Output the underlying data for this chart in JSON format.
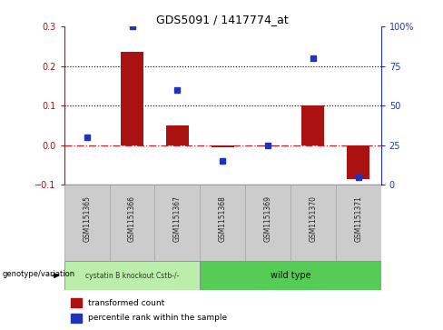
{
  "title": "GDS5091 / 1417774_at",
  "categories": [
    "GSM1151365",
    "GSM1151366",
    "GSM1151367",
    "GSM1151368",
    "GSM1151369",
    "GSM1151370",
    "GSM1151371"
  ],
  "bar_values": [
    0.0,
    0.235,
    0.05,
    -0.005,
    -0.002,
    0.1,
    -0.085
  ],
  "dot_values_pct": [
    30,
    100,
    60,
    15,
    25,
    80,
    5
  ],
  "bar_color": "#aa1111",
  "dot_color": "#2233bb",
  "zero_line_color": "#cc2222",
  "ylim": [
    -0.1,
    0.3
  ],
  "y2lim": [
    0,
    100
  ],
  "yticks": [
    -0.1,
    0.0,
    0.1,
    0.2,
    0.3
  ],
  "y2ticks": [
    0,
    25,
    50,
    75,
    100
  ],
  "y2ticklabels": [
    "0",
    "25",
    "50",
    "75",
    "100%"
  ],
  "group1_label": "cystatin B knockout Cstb-/-",
  "group2_label": "wild type",
  "group1_n": 3,
  "group2_n": 4,
  "group1_color": "#bbeeaa",
  "group2_color": "#55cc55",
  "legend_bar_label": "transformed count",
  "legend_dot_label": "percentile rank within the sample",
  "genotype_label": "genotype/variation",
  "dotted_line_y": [
    0.1,
    0.2
  ],
  "bar_width": 0.5,
  "label_box_color": "#cccccc",
  "label_box_edge": "#aaaaaa"
}
